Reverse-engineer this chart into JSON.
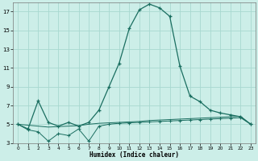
{
  "xlabel": "Humidex (Indice chaleur)",
  "background_color": "#cceee8",
  "grid_color": "#a8d8d0",
  "line_color": "#1a6e60",
  "x_values": [
    0,
    1,
    2,
    3,
    4,
    5,
    6,
    7,
    8,
    9,
    10,
    11,
    12,
    13,
    14,
    15,
    16,
    17,
    18,
    19,
    20,
    21,
    22,
    23
  ],
  "curve_main_y": [
    5.0,
    4.5,
    7.5,
    5.2,
    4.8,
    5.2,
    4.8,
    5.2,
    6.5,
    9.0,
    11.5,
    15.2,
    17.2,
    17.8,
    17.4,
    16.5,
    11.2,
    8.0,
    7.4,
    6.5,
    6.2,
    6.0,
    5.8,
    5.0
  ],
  "curve_zigzag_y": [
    5.0,
    4.4,
    4.2,
    3.2,
    4.0,
    3.8,
    4.5,
    3.2,
    4.8,
    5.0,
    5.1,
    5.15,
    5.2,
    5.25,
    5.3,
    5.35,
    5.4,
    5.45,
    5.5,
    5.55,
    5.6,
    5.65,
    5.7,
    5.0
  ],
  "curve_diag_y": [
    5.0,
    4.9,
    4.8,
    4.7,
    4.75,
    4.8,
    4.85,
    5.0,
    5.1,
    5.15,
    5.2,
    5.25,
    5.3,
    5.4,
    5.45,
    5.5,
    5.55,
    5.6,
    5.65,
    5.7,
    5.75,
    5.8,
    5.85,
    5.0
  ],
  "ylim": [
    3,
    18
  ],
  "xlim": [
    -0.5,
    23.5
  ],
  "yticks": [
    3,
    5,
    7,
    9,
    11,
    13,
    15,
    17
  ],
  "xticks": [
    0,
    1,
    2,
    3,
    4,
    5,
    6,
    7,
    8,
    9,
    10,
    11,
    12,
    13,
    14,
    15,
    16,
    17,
    18,
    19,
    20,
    21,
    22,
    23
  ]
}
